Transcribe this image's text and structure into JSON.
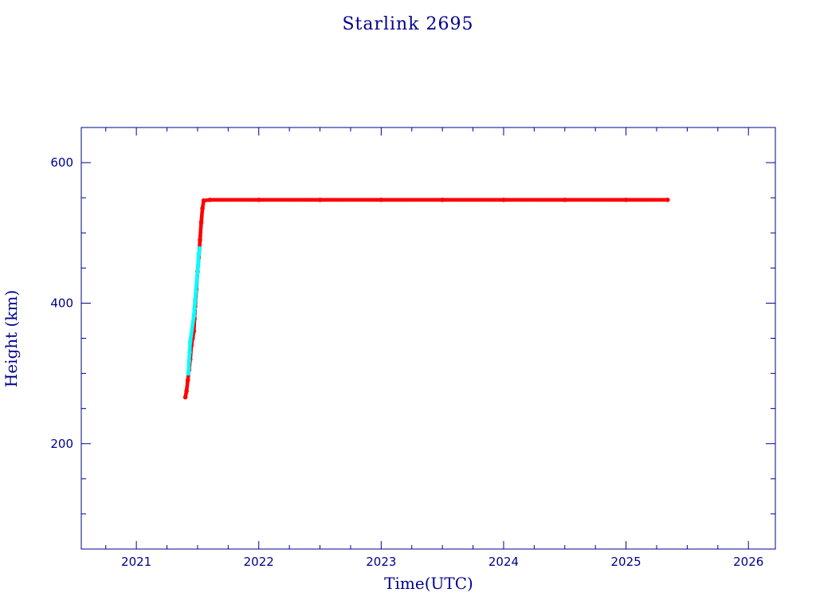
{
  "chart_data": {
    "type": "scatter",
    "title": "Starlink 2695",
    "xlabel": "Time(UTC)",
    "ylabel": "Height (km)",
    "xlim": [
      2020.55,
      2026.22
    ],
    "ylim": [
      50,
      650
    ],
    "x_ticks": [
      2021,
      2022,
      2023,
      2024,
      2025,
      2026
    ],
    "y_ticks": [
      200,
      400,
      600
    ],
    "grid": false,
    "legend": "none",
    "colors": {
      "axis": "#00008b",
      "primary": "#ff0000",
      "secondary": "#00ffff"
    },
    "series": [
      {
        "color": "#ff0000",
        "points": [
          [
            2021.4,
            266
          ],
          [
            2021.41,
            275
          ],
          [
            2021.42,
            290
          ],
          [
            2021.43,
            305
          ],
          [
            2021.44,
            320
          ],
          [
            2021.45,
            340
          ],
          [
            2021.46,
            350
          ],
          [
            2021.47,
            360
          ],
          [
            2021.475,
            378
          ],
          [
            2021.48,
            395
          ],
          [
            2021.49,
            420
          ],
          [
            2021.5,
            445
          ],
          [
            2021.51,
            465
          ],
          [
            2021.52,
            490
          ],
          [
            2021.53,
            515
          ],
          [
            2021.54,
            535
          ],
          [
            2021.55,
            546
          ],
          [
            2021.6,
            547
          ],
          [
            2022.0,
            547
          ],
          [
            2022.5,
            547
          ],
          [
            2023.0,
            547
          ],
          [
            2023.5,
            547
          ],
          [
            2024.0,
            547
          ],
          [
            2024.5,
            547
          ],
          [
            2025.0,
            547
          ],
          [
            2025.34,
            547
          ]
        ]
      },
      {
        "color": "#00ffff",
        "points": [
          [
            2021.425,
            300
          ],
          [
            2021.43,
            318
          ],
          [
            2021.435,
            330
          ],
          [
            2021.44,
            345
          ],
          [
            2021.47,
            382
          ],
          [
            2021.475,
            392
          ],
          [
            2021.48,
            405
          ],
          [
            2021.505,
            455
          ],
          [
            2021.51,
            470
          ],
          [
            2021.515,
            478
          ]
        ]
      }
    ]
  }
}
